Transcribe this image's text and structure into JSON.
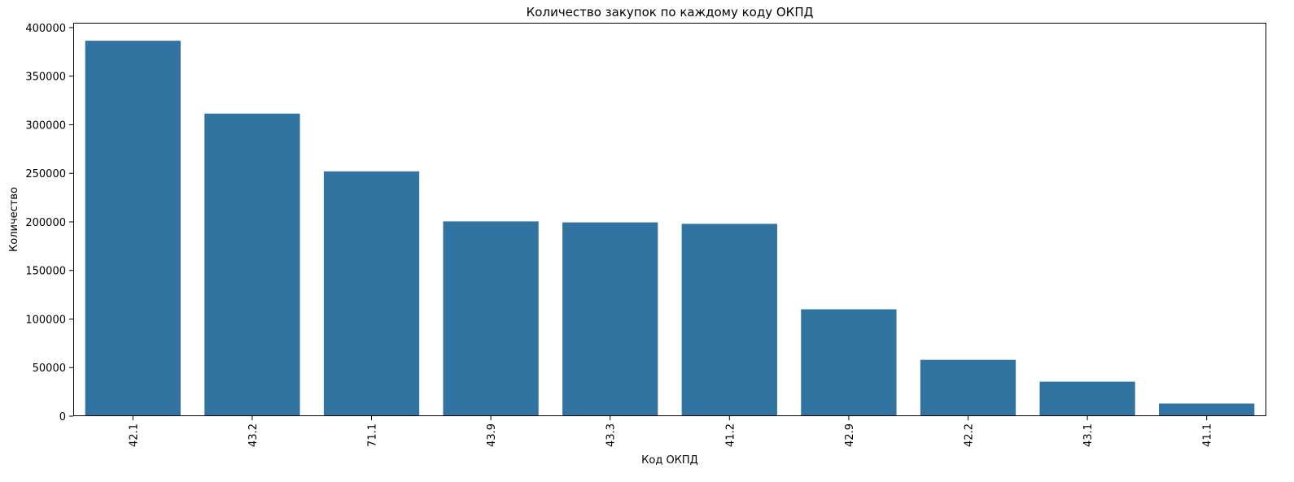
{
  "chart_data": {
    "type": "bar",
    "title": "Количество закупок по каждому коду ОКПД",
    "xlabel": "Код ОКПД",
    "ylabel": "Количество",
    "categories": [
      "42.1",
      "43.2",
      "71.1",
      "43.9",
      "43.3",
      "41.2",
      "42.9",
      "42.2",
      "43.1",
      "41.1"
    ],
    "values": [
      386500,
      311500,
      252000,
      200500,
      199500,
      198000,
      110000,
      58000,
      35500,
      13000
    ],
    "ylim": [
      0,
      405000
    ],
    "yticks": [
      0,
      50000,
      100000,
      150000,
      200000,
      250000,
      300000,
      350000,
      400000
    ],
    "bar_color": "#3274a1",
    "grid": false,
    "xtick_rotation": "vertical"
  }
}
